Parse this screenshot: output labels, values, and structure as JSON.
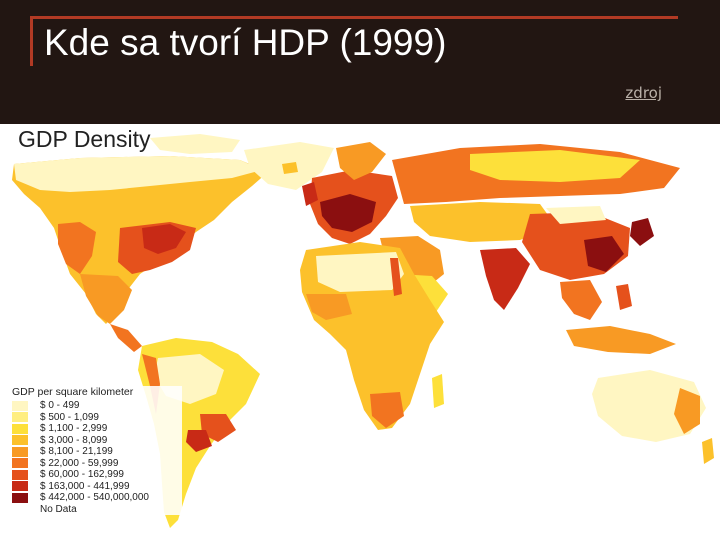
{
  "slide": {
    "title": "Kde sa tvorí HDP (1999)",
    "source_link": "zdroj"
  },
  "map": {
    "title": "GDP Density",
    "legend_title": "GDP per square kilometer",
    "legend": [
      {
        "label": "$ 0 - 499",
        "color": "#fff6c2"
      },
      {
        "label": "$ 500 - 1,099",
        "color": "#ffee80"
      },
      {
        "label": "$ 1,100 - 2,999",
        "color": "#fde03a"
      },
      {
        "label": "$ 3,000 - 8,099",
        "color": "#fcc12b"
      },
      {
        "label": "$ 8,100 - 21,199",
        "color": "#f89a24"
      },
      {
        "label": "$ 22,000 - 59,999",
        "color": "#f27420"
      },
      {
        "label": "$ 60,000 - 162,999",
        "color": "#e5511c"
      },
      {
        "label": "$ 163,000 - 441,999",
        "color": "#c82a16"
      },
      {
        "label": "$ 442,000 - 540,000,000",
        "color": "#8b0f10"
      },
      {
        "label": "No Data",
        "color": "#ffffff"
      }
    ]
  }
}
